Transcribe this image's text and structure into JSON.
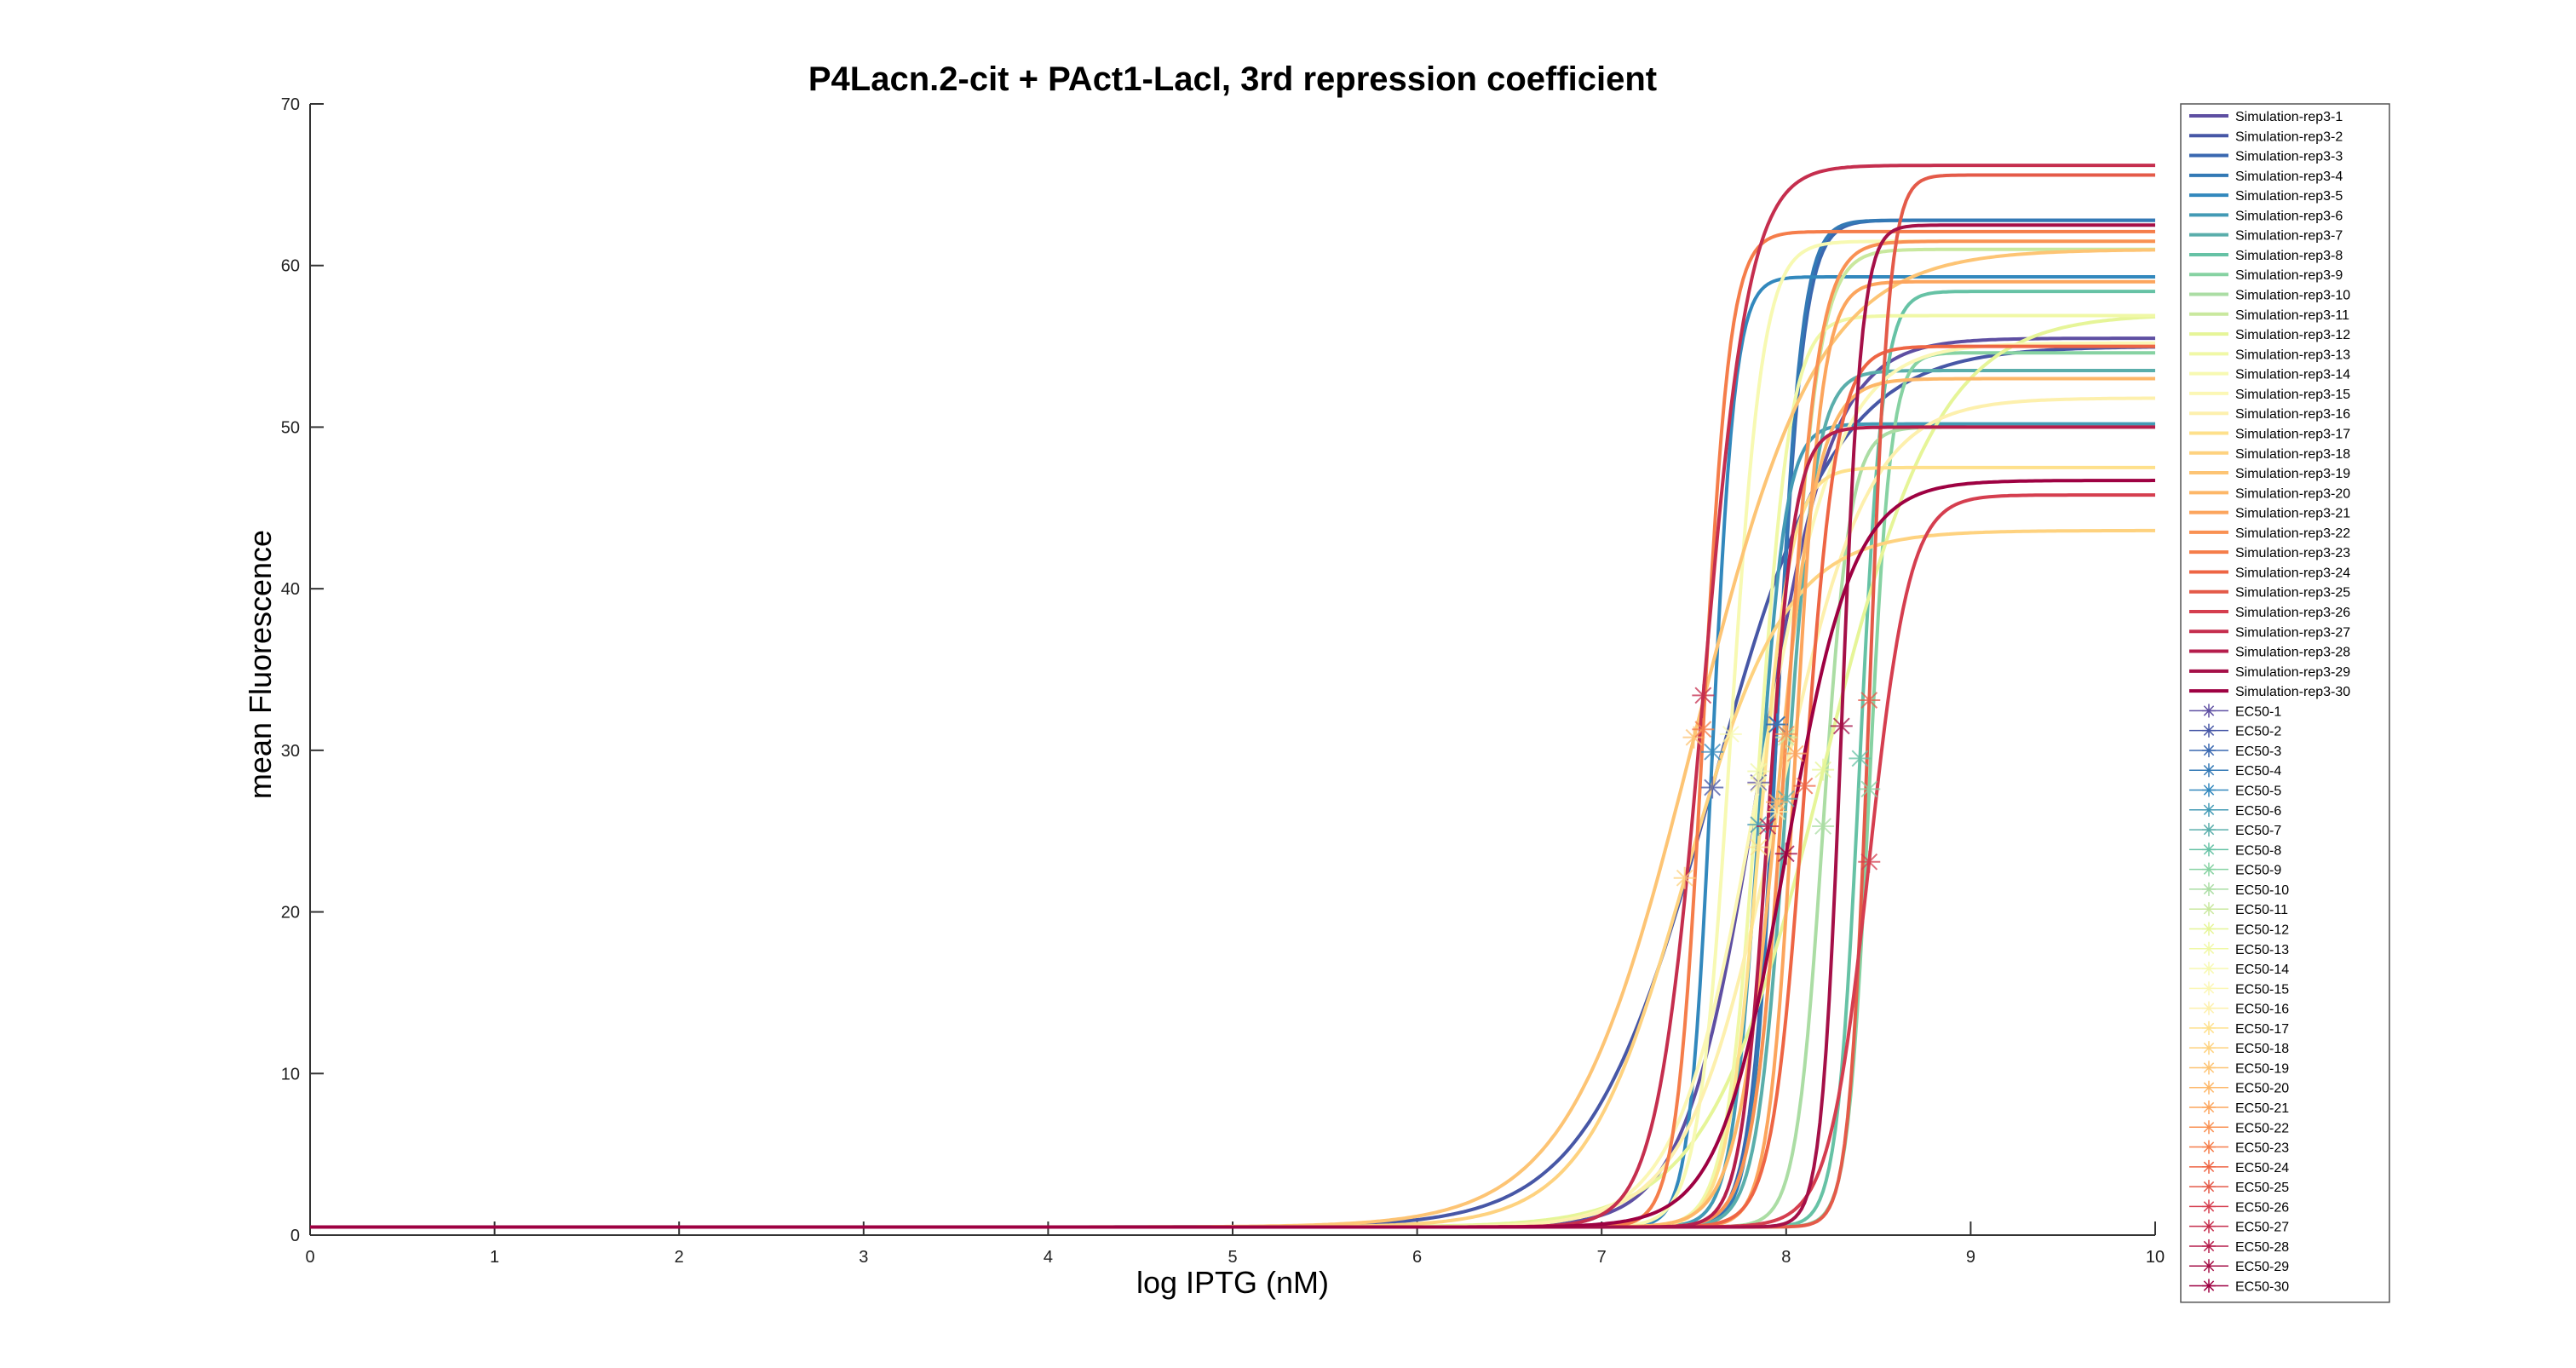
{
  "chart_data": {
    "type": "line",
    "title": "P4Lacn.2-cit + PAct1-LacI, 3rd repression coefficient",
    "xlabel": "log IPTG (nM)",
    "ylabel": "mean Fluorescence",
    "xlim": [
      0,
      10
    ],
    "ylim": [
      0,
      70
    ],
    "xticks": [
      "0",
      "1",
      "2",
      "3",
      "4",
      "5",
      "6",
      "7",
      "8",
      "9",
      "10"
    ],
    "yticks": [
      "0",
      "10",
      "20",
      "30",
      "40",
      "50",
      "60",
      "70"
    ],
    "legend_position": "outside-right",
    "grid": false,
    "series": [
      {
        "name": "Simulation-rep3-1",
        "color": "#5e4fa2",
        "baseline": 0.5,
        "max": 55.5,
        "ec50": 7.85,
        "n": 2.2,
        "ec50_y": 28.0
      },
      {
        "name": "Simulation-rep3-2",
        "color": "#4757a6",
        "baseline": 0.5,
        "max": 55.0,
        "ec50": 7.6,
        "n": 1.3,
        "ec50_y": 27.7
      },
      {
        "name": "Simulation-rep3-3",
        "color": "#3a68b0",
        "baseline": 0.5,
        "max": 62.8,
        "ec50": 7.95,
        "n": 6.0,
        "ec50_y": 31.6
      },
      {
        "name": "Simulation-rep3-4",
        "color": "#3379b5",
        "baseline": 0.5,
        "max": 62.8,
        "ec50": 7.95,
        "n": 6.5,
        "ec50_y": 31.6
      },
      {
        "name": "Simulation-rep3-5",
        "color": "#3288bd",
        "baseline": 0.5,
        "max": 59.3,
        "ec50": 7.6,
        "n": 7.0,
        "ec50_y": 29.9
      },
      {
        "name": "Simulation-rep3-6",
        "color": "#439ab5",
        "baseline": 0.5,
        "max": 50.2,
        "ec50": 7.85,
        "n": 6.0,
        "ec50_y": 25.4
      },
      {
        "name": "Simulation-rep3-7",
        "color": "#5aaeab",
        "baseline": 0.5,
        "max": 53.5,
        "ec50": 8.0,
        "n": 5.5,
        "ec50_y": 27.0
      },
      {
        "name": "Simulation-rep3-8",
        "color": "#66c2a5",
        "baseline": 0.5,
        "max": 58.4,
        "ec50": 8.4,
        "n": 7.0,
        "ec50_y": 29.5
      },
      {
        "name": "Simulation-rep3-9",
        "color": "#86d2a2",
        "baseline": 0.5,
        "max": 54.6,
        "ec50": 8.45,
        "n": 7.5,
        "ec50_y": 27.6
      },
      {
        "name": "Simulation-rep3-10",
        "color": "#abdda4",
        "baseline": 0.5,
        "max": 50.0,
        "ec50": 8.2,
        "n": 6.0,
        "ec50_y": 25.3
      },
      {
        "name": "Simulation-rep3-11",
        "color": "#c9e89e",
        "baseline": 0.5,
        "max": 61.0,
        "ec50": 8.0,
        "n": 5.0,
        "ec50_y": 30.8
      },
      {
        "name": "Simulation-rep3-12",
        "color": "#e6f598",
        "baseline": 0.5,
        "max": 57.0,
        "ec50": 8.2,
        "n": 1.4,
        "ec50_y": 28.8
      },
      {
        "name": "Simulation-rep3-13",
        "color": "#f0f8a6",
        "baseline": 0.5,
        "max": 56.9,
        "ec50": 7.85,
        "n": 5.0,
        "ec50_y": 28.7
      },
      {
        "name": "Simulation-rep3-14",
        "color": "#f7f9b2",
        "baseline": 0.5,
        "max": 61.5,
        "ec50": 7.7,
        "n": 5.0,
        "ec50_y": 31.0
      },
      {
        "name": "Simulation-rep3-15",
        "color": "#fbf7b5",
        "baseline": 0.5,
        "max": 55.2,
        "ec50": 7.85,
        "n": 2.0,
        "ec50_y": 27.9
      },
      {
        "name": "Simulation-rep3-16",
        "color": "#fdf0ad",
        "baseline": 0.5,
        "max": 51.8,
        "ec50": 7.95,
        "n": 1.8,
        "ec50_y": 26.2
      },
      {
        "name": "Simulation-rep3-17",
        "color": "#fee08b",
        "baseline": 0.5,
        "max": 47.5,
        "ec50": 7.85,
        "n": 5.0,
        "ec50_y": 24.0
      },
      {
        "name": "Simulation-rep3-18",
        "color": "#fed27f",
        "baseline": 0.5,
        "max": 43.6,
        "ec50": 7.45,
        "n": 1.6,
        "ec50_y": 22.1
      },
      {
        "name": "Simulation-rep3-19",
        "color": "#fdc474",
        "baseline": 0.5,
        "max": 61.0,
        "ec50": 7.5,
        "n": 1.3,
        "ec50_y": 30.8
      },
      {
        "name": "Simulation-rep3-20",
        "color": "#fdb768",
        "baseline": 0.5,
        "max": 53.0,
        "ec50": 7.95,
        "n": 4.0,
        "ec50_y": 26.8
      },
      {
        "name": "Simulation-rep3-21",
        "color": "#fca55d",
        "baseline": 0.5,
        "max": 59.0,
        "ec50": 8.05,
        "n": 6.0,
        "ec50_y": 29.8
      },
      {
        "name": "Simulation-rep3-22",
        "color": "#f99153",
        "baseline": 0.5,
        "max": 61.5,
        "ec50": 8.0,
        "n": 5.0,
        "ec50_y": 31.0
      },
      {
        "name": "Simulation-rep3-23",
        "color": "#f57d4a",
        "baseline": 0.5,
        "max": 62.1,
        "ec50": 7.55,
        "n": 6.0,
        "ec50_y": 31.3
      },
      {
        "name": "Simulation-rep3-24",
        "color": "#ee6544",
        "baseline": 0.5,
        "max": 55.0,
        "ec50": 8.1,
        "n": 5.0,
        "ec50_y": 27.8
      },
      {
        "name": "Simulation-rep3-25",
        "color": "#e45a49",
        "baseline": 0.5,
        "max": 65.6,
        "ec50": 8.45,
        "n": 8.0,
        "ec50_y": 33.1
      },
      {
        "name": "Simulation-rep3-26",
        "color": "#d53e4f",
        "baseline": 0.5,
        "max": 45.8,
        "ec50": 8.45,
        "n": 4.0,
        "ec50_y": 23.1
      },
      {
        "name": "Simulation-rep3-27",
        "color": "#c52e4e",
        "baseline": 0.5,
        "max": 66.2,
        "ec50": 7.55,
        "n": 3.5,
        "ec50_y": 33.4
      },
      {
        "name": "Simulation-rep3-28",
        "color": "#b51d4c",
        "baseline": 0.5,
        "max": 50.0,
        "ec50": 7.9,
        "n": 6.0,
        "ec50_y": 25.3
      },
      {
        "name": "Simulation-rep3-29",
        "color": "#a51048",
        "baseline": 0.5,
        "max": 62.5,
        "ec50": 8.3,
        "n": 8.0,
        "ec50_y": 31.5
      },
      {
        "name": "Simulation-rep3-30",
        "color": "#9e0142",
        "baseline": 0.5,
        "max": 46.7,
        "ec50": 8.0,
        "n": 2.4,
        "ec50_y": 23.6
      }
    ],
    "markers": [
      "EC50-1",
      "EC50-2",
      "EC50-3",
      "EC50-4",
      "EC50-5",
      "EC50-6",
      "EC50-7",
      "EC50-8",
      "EC50-9",
      "EC50-10",
      "EC50-11",
      "EC50-12",
      "EC50-13",
      "EC50-14",
      "EC50-15",
      "EC50-16",
      "EC50-17",
      "EC50-18",
      "EC50-19",
      "EC50-20",
      "EC50-21",
      "EC50-22",
      "EC50-23",
      "EC50-24",
      "EC50-25",
      "EC50-26",
      "EC50-27",
      "EC50-28",
      "EC50-29",
      "EC50-30"
    ]
  }
}
